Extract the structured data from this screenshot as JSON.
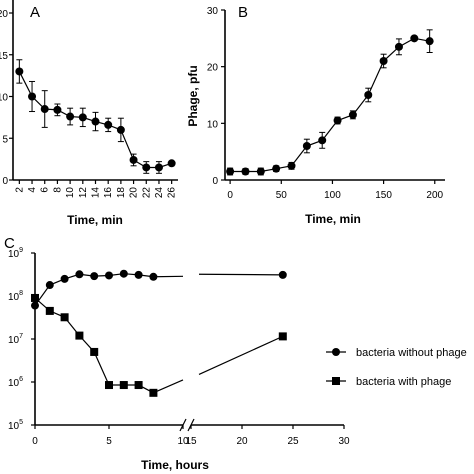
{
  "chart_data": [
    {
      "panel_label": "A",
      "type": "line",
      "title": "",
      "xlabel": "Time, min",
      "ylabel": "",
      "xlim": [
        1,
        27
      ],
      "ylim": [
        0,
        20
      ],
      "xticks": [
        2,
        4,
        6,
        8,
        10,
        12,
        14,
        16,
        18,
        20,
        22,
        24,
        26
      ],
      "yticks": [
        0,
        5,
        10,
        15,
        20
      ],
      "x": [
        2,
        4,
        6,
        8,
        10,
        12,
        14,
        16,
        18,
        20,
        22,
        24,
        26
      ],
      "y": [
        13,
        10,
        8.5,
        8.4,
        7.6,
        7.5,
        7,
        6.6,
        6,
        2.4,
        1.5,
        1.5,
        2
      ],
      "err": [
        1.4,
        1.8,
        2.2,
        0.7,
        1,
        1.1,
        1.1,
        0.8,
        1.4,
        0.7,
        0.7,
        0.7,
        0.2
      ]
    },
    {
      "panel_label": "B",
      "type": "line",
      "title": "",
      "xlabel": "Time, min",
      "ylabel": "Phage, pfu",
      "xlim": [
        -5,
        210
      ],
      "ylim": [
        0,
        30
      ],
      "xticks": [
        0,
        50,
        100,
        150,
        200
      ],
      "yticks": [
        0,
        10,
        20,
        30
      ],
      "x": [
        0,
        15,
        30,
        45,
        60,
        75,
        90,
        105,
        120,
        135,
        150,
        165,
        180,
        195
      ],
      "y": [
        1.5,
        1.5,
        1.5,
        2,
        2.5,
        6,
        7,
        10.5,
        11.5,
        15,
        21,
        23.5,
        25,
        24.5
      ],
      "err": [
        0.6,
        0.5,
        0.6,
        0.5,
        0.6,
        1.2,
        1.4,
        0.6,
        0.7,
        1.2,
        1.2,
        1.4,
        0.3,
        2
      ]
    },
    {
      "panel_label": "C",
      "type": "line",
      "title": "",
      "xlabel": "Time, hours",
      "ylabel": "",
      "y_scale": "log",
      "ylim": [
        100000,
        1000000000
      ],
      "yticks": [
        "10^5",
        "10^6",
        "10^7",
        "10^8",
        "10^9"
      ],
      "xticks_left": [
        0,
        5,
        10
      ],
      "xticks_right": [
        15,
        20,
        25,
        30
      ],
      "x_axis_break": "between 10 and 15",
      "series": [
        {
          "name": "bacteria without phage",
          "marker": "circle",
          "x": [
            0,
            1,
            2,
            3,
            4,
            5,
            6,
            7,
            8,
            24
          ],
          "y": [
            60000000,
            180000000,
            250000000,
            320000000,
            290000000,
            300000000,
            330000000,
            310000000,
            280000000,
            310000000
          ]
        },
        {
          "name": "bacteria with phage",
          "marker": "square",
          "x": [
            0,
            1,
            2,
            3,
            4,
            5,
            6,
            7,
            8,
            24
          ],
          "y": [
            90000000,
            45000000,
            32000000,
            12000000,
            5000000,
            850000,
            850000,
            850000,
            560000,
            11500000
          ]
        }
      ],
      "legend_placement": "right"
    }
  ]
}
